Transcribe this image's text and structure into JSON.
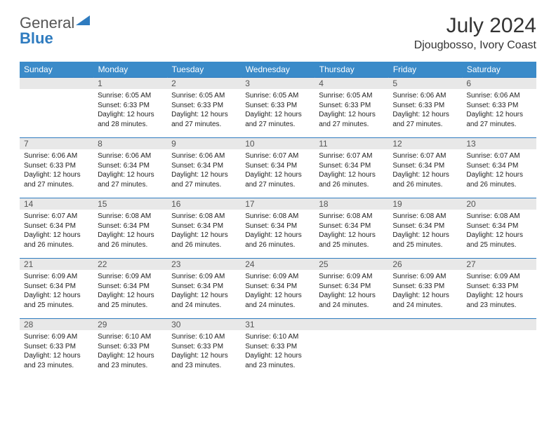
{
  "brand": {
    "part1": "General",
    "part2": "Blue",
    "triangle_color": "#2e7bbf"
  },
  "title": "July 2024",
  "location": "Djougbosso, Ivory Coast",
  "colors": {
    "header_bg": "#3b8bc9",
    "header_text": "#ffffff",
    "daynum_bg": "#e8e8e8",
    "daynum_text": "#555555",
    "weekline": "#2e7bbf",
    "body_text": "#222222"
  },
  "day_headers": [
    "Sunday",
    "Monday",
    "Tuesday",
    "Wednesday",
    "Thursday",
    "Friday",
    "Saturday"
  ],
  "weeks": [
    {
      "nums": [
        "",
        "1",
        "2",
        "3",
        "4",
        "5",
        "6"
      ],
      "cells": [
        null,
        {
          "sunrise": "Sunrise: 6:05 AM",
          "sunset": "Sunset: 6:33 PM",
          "day1": "Daylight: 12 hours",
          "day2": "and 28 minutes."
        },
        {
          "sunrise": "Sunrise: 6:05 AM",
          "sunset": "Sunset: 6:33 PM",
          "day1": "Daylight: 12 hours",
          "day2": "and 27 minutes."
        },
        {
          "sunrise": "Sunrise: 6:05 AM",
          "sunset": "Sunset: 6:33 PM",
          "day1": "Daylight: 12 hours",
          "day2": "and 27 minutes."
        },
        {
          "sunrise": "Sunrise: 6:05 AM",
          "sunset": "Sunset: 6:33 PM",
          "day1": "Daylight: 12 hours",
          "day2": "and 27 minutes."
        },
        {
          "sunrise": "Sunrise: 6:06 AM",
          "sunset": "Sunset: 6:33 PM",
          "day1": "Daylight: 12 hours",
          "day2": "and 27 minutes."
        },
        {
          "sunrise": "Sunrise: 6:06 AM",
          "sunset": "Sunset: 6:33 PM",
          "day1": "Daylight: 12 hours",
          "day2": "and 27 minutes."
        }
      ]
    },
    {
      "nums": [
        "7",
        "8",
        "9",
        "10",
        "11",
        "12",
        "13"
      ],
      "cells": [
        {
          "sunrise": "Sunrise: 6:06 AM",
          "sunset": "Sunset: 6:33 PM",
          "day1": "Daylight: 12 hours",
          "day2": "and 27 minutes."
        },
        {
          "sunrise": "Sunrise: 6:06 AM",
          "sunset": "Sunset: 6:34 PM",
          "day1": "Daylight: 12 hours",
          "day2": "and 27 minutes."
        },
        {
          "sunrise": "Sunrise: 6:06 AM",
          "sunset": "Sunset: 6:34 PM",
          "day1": "Daylight: 12 hours",
          "day2": "and 27 minutes."
        },
        {
          "sunrise": "Sunrise: 6:07 AM",
          "sunset": "Sunset: 6:34 PM",
          "day1": "Daylight: 12 hours",
          "day2": "and 27 minutes."
        },
        {
          "sunrise": "Sunrise: 6:07 AM",
          "sunset": "Sunset: 6:34 PM",
          "day1": "Daylight: 12 hours",
          "day2": "and 26 minutes."
        },
        {
          "sunrise": "Sunrise: 6:07 AM",
          "sunset": "Sunset: 6:34 PM",
          "day1": "Daylight: 12 hours",
          "day2": "and 26 minutes."
        },
        {
          "sunrise": "Sunrise: 6:07 AM",
          "sunset": "Sunset: 6:34 PM",
          "day1": "Daylight: 12 hours",
          "day2": "and 26 minutes."
        }
      ]
    },
    {
      "nums": [
        "14",
        "15",
        "16",
        "17",
        "18",
        "19",
        "20"
      ],
      "cells": [
        {
          "sunrise": "Sunrise: 6:07 AM",
          "sunset": "Sunset: 6:34 PM",
          "day1": "Daylight: 12 hours",
          "day2": "and 26 minutes."
        },
        {
          "sunrise": "Sunrise: 6:08 AM",
          "sunset": "Sunset: 6:34 PM",
          "day1": "Daylight: 12 hours",
          "day2": "and 26 minutes."
        },
        {
          "sunrise": "Sunrise: 6:08 AM",
          "sunset": "Sunset: 6:34 PM",
          "day1": "Daylight: 12 hours",
          "day2": "and 26 minutes."
        },
        {
          "sunrise": "Sunrise: 6:08 AM",
          "sunset": "Sunset: 6:34 PM",
          "day1": "Daylight: 12 hours",
          "day2": "and 26 minutes."
        },
        {
          "sunrise": "Sunrise: 6:08 AM",
          "sunset": "Sunset: 6:34 PM",
          "day1": "Daylight: 12 hours",
          "day2": "and 25 minutes."
        },
        {
          "sunrise": "Sunrise: 6:08 AM",
          "sunset": "Sunset: 6:34 PM",
          "day1": "Daylight: 12 hours",
          "day2": "and 25 minutes."
        },
        {
          "sunrise": "Sunrise: 6:08 AM",
          "sunset": "Sunset: 6:34 PM",
          "day1": "Daylight: 12 hours",
          "day2": "and 25 minutes."
        }
      ]
    },
    {
      "nums": [
        "21",
        "22",
        "23",
        "24",
        "25",
        "26",
        "27"
      ],
      "cells": [
        {
          "sunrise": "Sunrise: 6:09 AM",
          "sunset": "Sunset: 6:34 PM",
          "day1": "Daylight: 12 hours",
          "day2": "and 25 minutes."
        },
        {
          "sunrise": "Sunrise: 6:09 AM",
          "sunset": "Sunset: 6:34 PM",
          "day1": "Daylight: 12 hours",
          "day2": "and 25 minutes."
        },
        {
          "sunrise": "Sunrise: 6:09 AM",
          "sunset": "Sunset: 6:34 PM",
          "day1": "Daylight: 12 hours",
          "day2": "and 24 minutes."
        },
        {
          "sunrise": "Sunrise: 6:09 AM",
          "sunset": "Sunset: 6:34 PM",
          "day1": "Daylight: 12 hours",
          "day2": "and 24 minutes."
        },
        {
          "sunrise": "Sunrise: 6:09 AM",
          "sunset": "Sunset: 6:34 PM",
          "day1": "Daylight: 12 hours",
          "day2": "and 24 minutes."
        },
        {
          "sunrise": "Sunrise: 6:09 AM",
          "sunset": "Sunset: 6:33 PM",
          "day1": "Daylight: 12 hours",
          "day2": "and 24 minutes."
        },
        {
          "sunrise": "Sunrise: 6:09 AM",
          "sunset": "Sunset: 6:33 PM",
          "day1": "Daylight: 12 hours",
          "day2": "and 23 minutes."
        }
      ]
    },
    {
      "nums": [
        "28",
        "29",
        "30",
        "31",
        "",
        "",
        ""
      ],
      "cells": [
        {
          "sunrise": "Sunrise: 6:09 AM",
          "sunset": "Sunset: 6:33 PM",
          "day1": "Daylight: 12 hours",
          "day2": "and 23 minutes."
        },
        {
          "sunrise": "Sunrise: 6:10 AM",
          "sunset": "Sunset: 6:33 PM",
          "day1": "Daylight: 12 hours",
          "day2": "and 23 minutes."
        },
        {
          "sunrise": "Sunrise: 6:10 AM",
          "sunset": "Sunset: 6:33 PM",
          "day1": "Daylight: 12 hours",
          "day2": "and 23 minutes."
        },
        {
          "sunrise": "Sunrise: 6:10 AM",
          "sunset": "Sunset: 6:33 PM",
          "day1": "Daylight: 12 hours",
          "day2": "and 23 minutes."
        },
        null,
        null,
        null
      ]
    }
  ]
}
